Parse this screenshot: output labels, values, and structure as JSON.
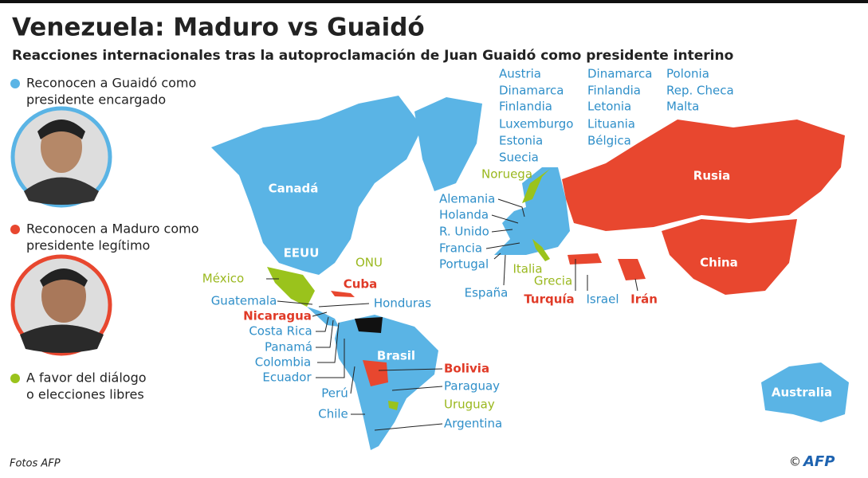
{
  "header": {
    "title": "Venezuela: Maduro vs Guaidó",
    "subtitle": "Reacciones internacionales tras la autoproclamación de Juan Guaidó como presidente interino"
  },
  "legend": [
    {
      "key": "guaido",
      "lines": [
        "Reconocen a Guaidó como",
        "presidente encargado"
      ],
      "color": "#5ab4e5",
      "text_color": "#2f8fc9"
    },
    {
      "key": "maduro",
      "lines": [
        "Reconocen a Maduro como",
        "presidente legítimo"
      ],
      "color": "#e8472f",
      "text_color": "#e03a27"
    },
    {
      "key": "dialogo",
      "lines": [
        "A favor del diálogo",
        "o elecciones libres"
      ],
      "color": "#9ac31c",
      "text_color": "#9ab81e"
    }
  ],
  "country_names": [
    "Canadá",
    "EEUU",
    "Brasil",
    "Rusia",
    "China",
    "Australia"
  ],
  "map_labels": [
    {
      "text": "ONU",
      "group": "dialogo"
    },
    {
      "text": "México",
      "group": "dialogo"
    },
    {
      "text": "Cuba",
      "group": "maduro"
    },
    {
      "text": "Guatemala",
      "group": "guaido"
    },
    {
      "text": "Honduras",
      "group": "guaido"
    },
    {
      "text": "Nicaragua",
      "group": "maduro"
    },
    {
      "text": "Costa Rica",
      "group": "guaido"
    },
    {
      "text": "Panamá",
      "group": "guaido"
    },
    {
      "text": "Colombia",
      "group": "guaido"
    },
    {
      "text": "Ecuador",
      "group": "guaido"
    },
    {
      "text": "Perú",
      "group": "guaido"
    },
    {
      "text": "Chile",
      "group": "guaido"
    },
    {
      "text": "Bolivia",
      "group": "maduro"
    },
    {
      "text": "Paraguay",
      "group": "guaido"
    },
    {
      "text": "Uruguay",
      "group": "dialogo"
    },
    {
      "text": "Argentina",
      "group": "guaido"
    },
    {
      "text": "Austria",
      "group": "guaido"
    },
    {
      "text": "Dinamarca",
      "group": "guaido"
    },
    {
      "text": "Finlandia",
      "group": "guaido"
    },
    {
      "text": "Luxemburgo",
      "group": "guaido"
    },
    {
      "text": "Estonia",
      "group": "guaido"
    },
    {
      "text": "Suecia",
      "group": "guaido"
    },
    {
      "text": "Dinamarca",
      "group": "guaido"
    },
    {
      "text": "Finlandia",
      "group": "guaido"
    },
    {
      "text": "Letonia",
      "group": "guaido"
    },
    {
      "text": "Lituania",
      "group": "guaido"
    },
    {
      "text": "Bélgica",
      "group": "guaido"
    },
    {
      "text": "Polonia",
      "group": "guaido"
    },
    {
      "text": "Rep. Checa",
      "group": "guaido"
    },
    {
      "text": "Malta",
      "group": "guaido"
    },
    {
      "text": "Noruega",
      "group": "dialogo"
    },
    {
      "text": "Alemania",
      "group": "guaido"
    },
    {
      "text": "Holanda",
      "group": "guaido"
    },
    {
      "text": "R. Unido",
      "group": "guaido"
    },
    {
      "text": "Francia",
      "group": "guaido"
    },
    {
      "text": "Portugal",
      "group": "guaido"
    },
    {
      "text": "Italia",
      "group": "dialogo"
    },
    {
      "text": "Grecia",
      "group": "dialogo"
    },
    {
      "text": "España",
      "group": "guaido"
    },
    {
      "text": "Turquía",
      "group": "maduro"
    },
    {
      "text": "Israel",
      "group": "guaido"
    },
    {
      "text": "Irán",
      "group": "maduro"
    }
  ],
  "footer": {
    "credit": "Fotos AFP",
    "copyright": "©",
    "logo": "AFP"
  }
}
